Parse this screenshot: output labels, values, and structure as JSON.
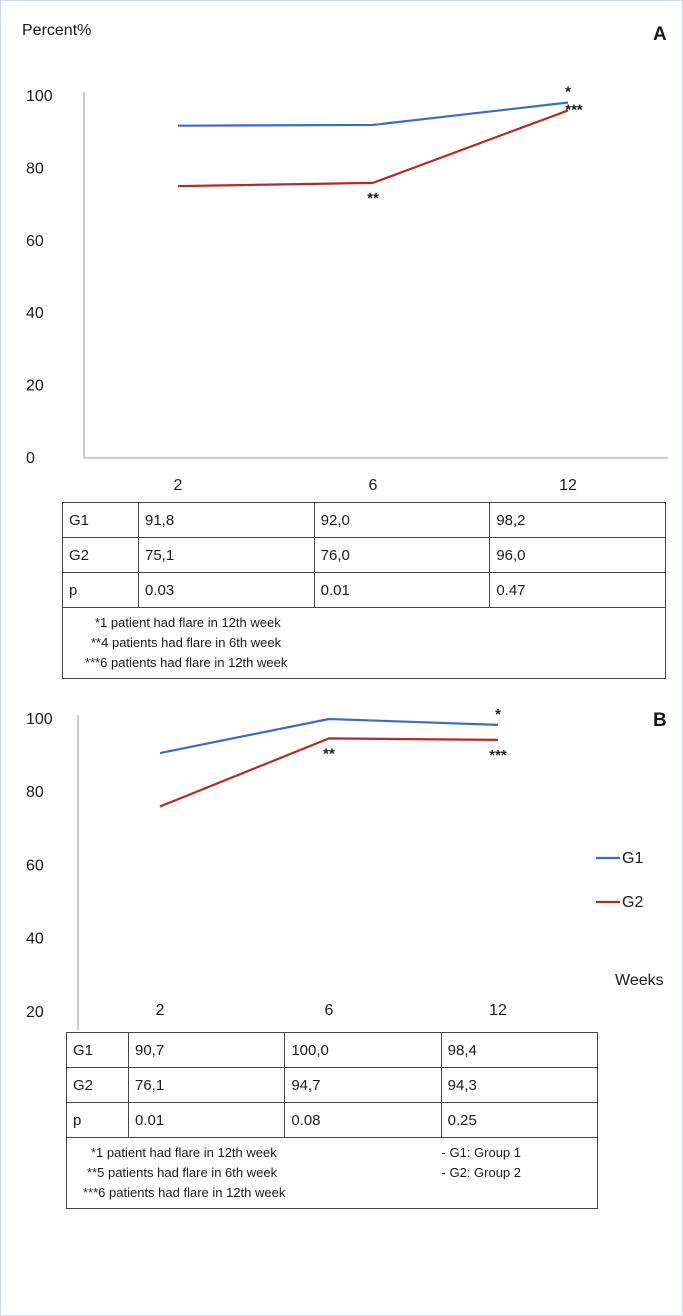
{
  "colors": {
    "g1": "#3b6dbf",
    "g2": "#b22a2a"
  },
  "chart_data": [
    {
      "type": "line",
      "panel_label": "A",
      "ylabel": "Percent%",
      "xlabel": "",
      "categories": [
        "2",
        "6",
        "12"
      ],
      "ylim": [
        0,
        100
      ],
      "yticks": [
        "0",
        "20",
        "40",
        "60",
        "80",
        "100"
      ],
      "series": [
        {
          "name": "G1",
          "values": [
            91.8,
            92.0,
            98.2
          ],
          "color": "#3b6dbf"
        },
        {
          "name": "G2",
          "values": [
            75.1,
            76.0,
            96.0
          ],
          "color": "#b22a2a"
        }
      ],
      "annotations": [
        {
          "text": "*",
          "series": "G1",
          "index": 2,
          "position": "above"
        },
        {
          "text": "**",
          "series": "G2",
          "index": 1,
          "position": "below"
        },
        {
          "text": "***",
          "series": "G2",
          "index": 2,
          "position": "above-right"
        }
      ],
      "table": {
        "rows": [
          {
            "label": "G1",
            "values": [
              "91,8",
              "92,0",
              "98,2"
            ]
          },
          {
            "label": "G2",
            "values": [
              "75,1",
              "76,0",
              "96,0"
            ]
          },
          {
            "label": "p",
            "values": [
              "0.03",
              "0.01",
              "0.47"
            ]
          }
        ],
        "notes_left": [
          "*1 patient had flare in 12th week",
          "**4 patients had flare in 6th week",
          "***6 patients had flare in 12th week"
        ],
        "notes_right": []
      },
      "grid": false,
      "legend": null
    },
    {
      "type": "line",
      "panel_label": "B",
      "ylabel": "",
      "xlabel": "Weeks",
      "categories": [
        "2",
        "6",
        "12"
      ],
      "ylim": [
        0,
        100
      ],
      "yticks": [
        "0",
        "20",
        "40",
        "60",
        "80",
        "100"
      ],
      "series": [
        {
          "name": "G1",
          "values": [
            90.7,
            100.0,
            98.4
          ],
          "color": "#3b6dbf"
        },
        {
          "name": "G2",
          "values": [
            76.1,
            94.7,
            94.3
          ],
          "color": "#b22a2a"
        }
      ],
      "annotations": [
        {
          "text": "*",
          "series": "G1",
          "index": 2,
          "position": "above"
        },
        {
          "text": "**",
          "series": "G2",
          "index": 1,
          "position": "below"
        },
        {
          "text": "***",
          "series": "G2",
          "index": 2,
          "position": "below"
        }
      ],
      "table": {
        "rows": [
          {
            "label": "G1",
            "values": [
              "90,7",
              "100,0",
              "98,4"
            ]
          },
          {
            "label": "G2",
            "values": [
              "76,1",
              "94,7",
              "94,3"
            ]
          },
          {
            "label": "p",
            "values": [
              "0.01",
              "0.08",
              "0.25"
            ]
          }
        ],
        "notes_left": [
          "*1 patient had flare in 12th week",
          "**5 patients had flare in 6th week",
          "***6 patients had flare in 12th week"
        ],
        "notes_right": [
          "- G1: Group 1",
          "- G2: Group 2"
        ]
      },
      "grid": false,
      "legend": "right"
    }
  ]
}
